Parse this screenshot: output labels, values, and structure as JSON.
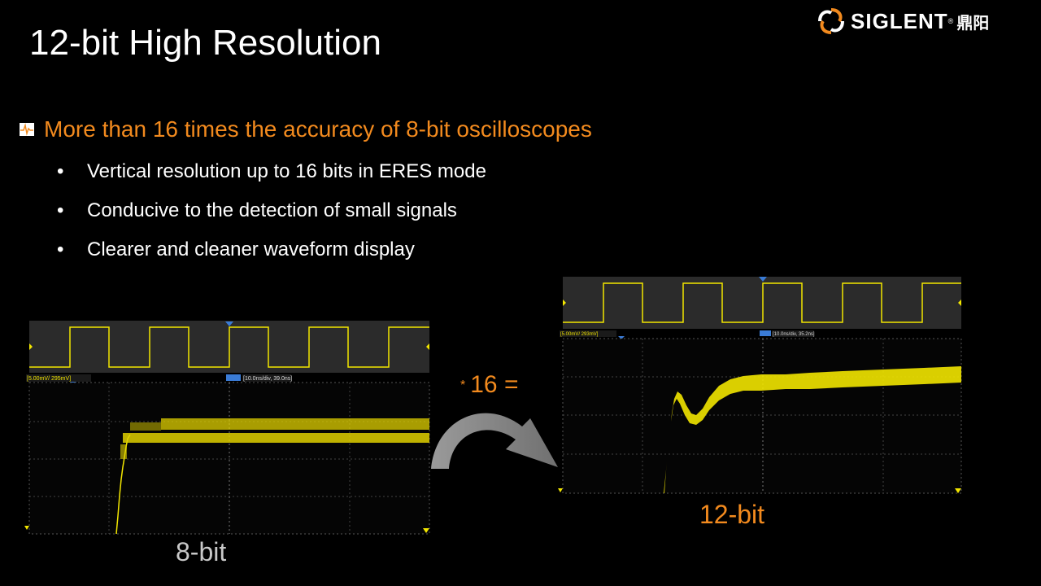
{
  "slide": {
    "title": "12-bit High Resolution",
    "logo": {
      "brand": "SIGLENT",
      "cn": "鼎阳",
      "reg": "®"
    },
    "headline": "More than 16 times the accuracy of 8-bit oscilloscopes",
    "bullet_marker": "•",
    "bullets": [
      "Vertical resolution up to 16 bits in ERES mode",
      "Conducive to the detection of small signals",
      "Clearer and cleaner waveform display"
    ],
    "multiplier": {
      "star": "*",
      "text": "16 ="
    },
    "left_scope": {
      "caption": "8-bit",
      "ch_label": "[5.00mV/ 295mV]",
      "tb_label": "[10.0ns/div, 39.0ns]"
    },
    "right_scope": {
      "caption": "12-bit",
      "ch_label": "[5.00mV/ 293mV]",
      "tb_label": "[10.0ns/div, 35.2ns]"
    }
  },
  "colors": {
    "accent": "#F28A1E",
    "trace": "#F2E600",
    "marker": "#3A7BD5",
    "caption_gray": "#C8C8C8"
  }
}
